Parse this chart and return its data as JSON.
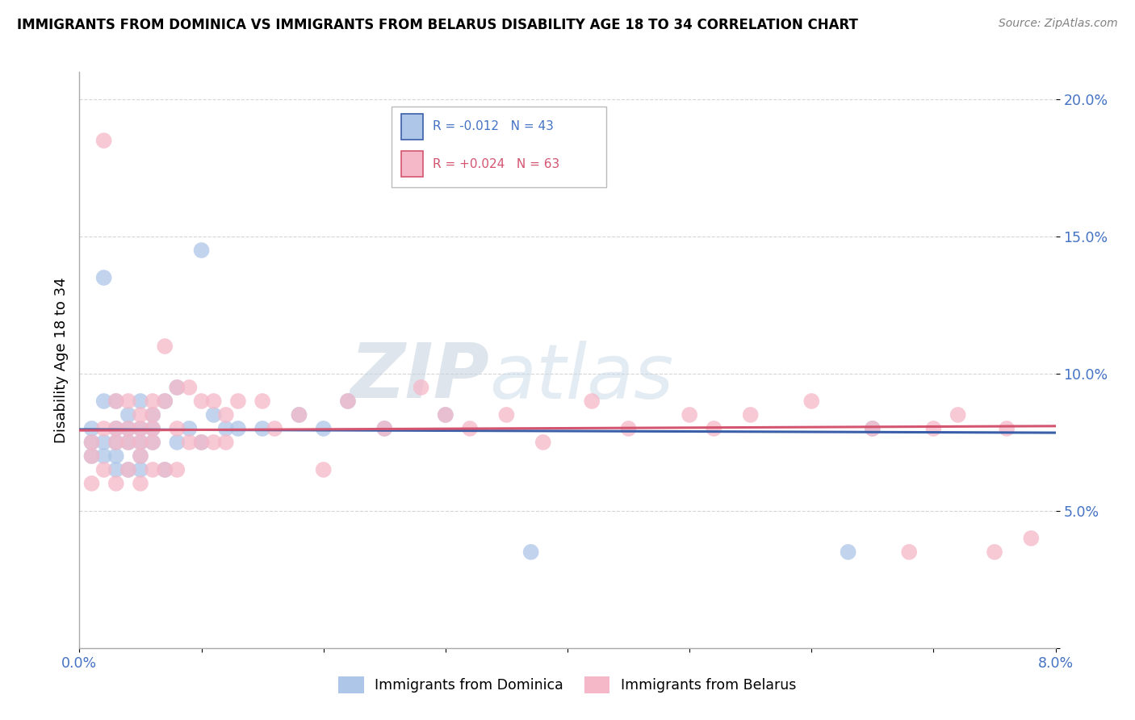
{
  "title": "IMMIGRANTS FROM DOMINICA VS IMMIGRANTS FROM BELARUS DISABILITY AGE 18 TO 34 CORRELATION CHART",
  "source": "Source: ZipAtlas.com",
  "ylabel": "Disability Age 18 to 34",
  "xlim": [
    0.0,
    0.08
  ],
  "ylim": [
    0.0,
    0.21
  ],
  "dominica_R": -0.012,
  "dominica_N": 43,
  "belarus_R": 0.024,
  "belarus_N": 63,
  "dominica_color": "#aec6e8",
  "belarus_color": "#f5b8c8",
  "dominica_line_color": "#3a5fa8",
  "belarus_line_color": "#d45570",
  "legend_label_dominica": "Immigrants from Dominica",
  "legend_label_belarus": "Immigrants from Belarus",
  "watermark_zip": "ZIP",
  "watermark_atlas": "atlas",
  "dominica_x": [
    0.001,
    0.001,
    0.001,
    0.002,
    0.002,
    0.002,
    0.002,
    0.003,
    0.003,
    0.003,
    0.003,
    0.003,
    0.004,
    0.004,
    0.004,
    0.004,
    0.005,
    0.005,
    0.005,
    0.005,
    0.005,
    0.006,
    0.006,
    0.006,
    0.007,
    0.007,
    0.008,
    0.008,
    0.009,
    0.01,
    0.01,
    0.011,
    0.012,
    0.013,
    0.015,
    0.018,
    0.02,
    0.022,
    0.025,
    0.03,
    0.037,
    0.063,
    0.065
  ],
  "dominica_y": [
    0.08,
    0.075,
    0.07,
    0.135,
    0.09,
    0.075,
    0.07,
    0.09,
    0.08,
    0.075,
    0.07,
    0.065,
    0.085,
    0.08,
    0.075,
    0.065,
    0.09,
    0.08,
    0.075,
    0.07,
    0.065,
    0.085,
    0.08,
    0.075,
    0.09,
    0.065,
    0.095,
    0.075,
    0.08,
    0.145,
    0.075,
    0.085,
    0.08,
    0.08,
    0.08,
    0.085,
    0.08,
    0.09,
    0.08,
    0.085,
    0.035,
    0.035,
    0.08
  ],
  "belarus_x": [
    0.001,
    0.001,
    0.001,
    0.002,
    0.002,
    0.002,
    0.003,
    0.003,
    0.003,
    0.003,
    0.004,
    0.004,
    0.004,
    0.004,
    0.005,
    0.005,
    0.005,
    0.005,
    0.005,
    0.006,
    0.006,
    0.006,
    0.006,
    0.006,
    0.007,
    0.007,
    0.007,
    0.008,
    0.008,
    0.008,
    0.009,
    0.009,
    0.01,
    0.01,
    0.011,
    0.011,
    0.012,
    0.012,
    0.013,
    0.015,
    0.016,
    0.018,
    0.02,
    0.022,
    0.025,
    0.028,
    0.03,
    0.032,
    0.035,
    0.038,
    0.042,
    0.045,
    0.05,
    0.052,
    0.055,
    0.06,
    0.065,
    0.068,
    0.07,
    0.072,
    0.075,
    0.076,
    0.078
  ],
  "belarus_y": [
    0.075,
    0.07,
    0.06,
    0.185,
    0.08,
    0.065,
    0.09,
    0.08,
    0.075,
    0.06,
    0.09,
    0.08,
    0.075,
    0.065,
    0.085,
    0.08,
    0.075,
    0.07,
    0.06,
    0.09,
    0.085,
    0.08,
    0.075,
    0.065,
    0.11,
    0.09,
    0.065,
    0.095,
    0.08,
    0.065,
    0.095,
    0.075,
    0.09,
    0.075,
    0.09,
    0.075,
    0.085,
    0.075,
    0.09,
    0.09,
    0.08,
    0.085,
    0.065,
    0.09,
    0.08,
    0.095,
    0.085,
    0.08,
    0.085,
    0.075,
    0.09,
    0.08,
    0.085,
    0.08,
    0.085,
    0.09,
    0.08,
    0.035,
    0.08,
    0.085,
    0.035,
    0.08,
    0.04
  ]
}
